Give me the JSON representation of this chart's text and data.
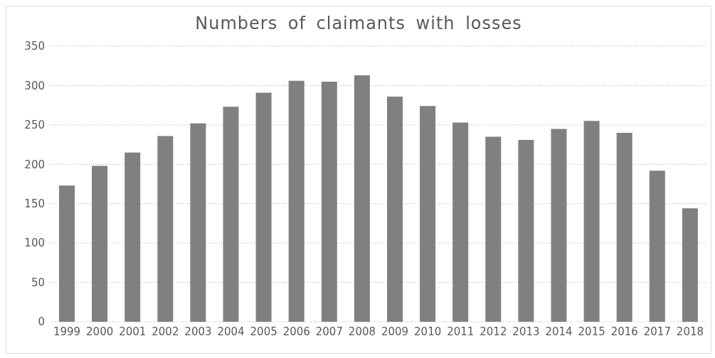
{
  "chart_data": {
    "type": "bar",
    "title": "Numbers of claimants with losses",
    "categories": [
      "1999",
      "2000",
      "2001",
      "2002",
      "2003",
      "2004",
      "2005",
      "2006",
      "2007",
      "2008",
      "2009",
      "2010",
      "2011",
      "2012",
      "2013",
      "2014",
      "2015",
      "2016",
      "2017",
      "2018"
    ],
    "values": [
      173,
      198,
      215,
      236,
      252,
      273,
      291,
      306,
      305,
      313,
      286,
      274,
      253,
      235,
      231,
      245,
      255,
      240,
      192,
      144
    ],
    "color": "#808080",
    "ylim": [
      0,
      350
    ],
    "yticks": [
      0,
      50,
      100,
      150,
      200,
      250,
      300,
      350
    ],
    "grid": "y"
  }
}
